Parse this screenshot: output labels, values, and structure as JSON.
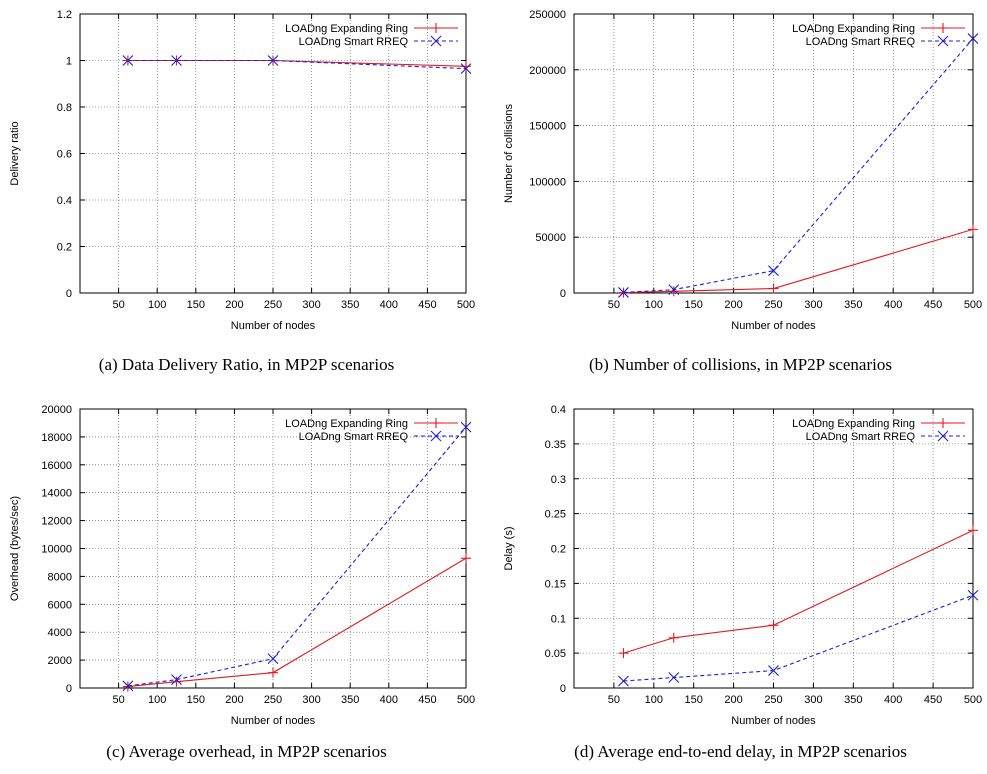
{
  "colors": {
    "series1": "#e31a1c",
    "series2": "#1f1fd0",
    "grid": "#555555"
  },
  "chart_data": [
    {
      "type": "line",
      "caption": "(a)  Data Delivery Ratio, in MP2P scenarios",
      "xlabel": "Number of nodes",
      "ylabel": "Delivery ratio",
      "xlim": [
        0,
        500
      ],
      "ylim": [
        0,
        1.2
      ],
      "xticks": [
        50,
        100,
        150,
        200,
        250,
        300,
        350,
        400,
        450,
        500
      ],
      "yticks": [
        0,
        0.2,
        0.4,
        0.6,
        0.8,
        1,
        1.2
      ],
      "ytick_labels": [
        "0",
        "0.2",
        "0.4",
        "0.6",
        "0.8",
        "1",
        "1.2"
      ],
      "grid": true,
      "legend": "top-right",
      "series": [
        {
          "name": "LOADng Expanding Ring",
          "marker": "plus",
          "dashed": false,
          "x": [
            62,
            125,
            250,
            500
          ],
          "y": [
            1.0,
            1.0,
            1.0,
            0.975
          ]
        },
        {
          "name": "LOADng Smart RREQ",
          "marker": "x",
          "dashed": true,
          "x": [
            62,
            125,
            250,
            500
          ],
          "y": [
            1.0,
            1.0,
            1.0,
            0.965
          ]
        }
      ]
    },
    {
      "type": "line",
      "caption": "(b)  Number of collisions, in MP2P scenarios",
      "xlabel": "Number of nodes",
      "ylabel": "Number of collisions",
      "xlim": [
        0,
        500
      ],
      "ylim": [
        0,
        250000
      ],
      "xticks": [
        50,
        100,
        150,
        200,
        250,
        300,
        350,
        400,
        450,
        500
      ],
      "yticks": [
        0,
        50000,
        100000,
        150000,
        200000,
        250000
      ],
      "ytick_labels": [
        "0",
        "50000",
        "100000",
        "150000",
        "200000",
        "250000"
      ],
      "grid": true,
      "legend": "top-right",
      "series": [
        {
          "name": "LOADng Expanding Ring",
          "marker": "plus",
          "dashed": false,
          "x": [
            62,
            125,
            250,
            500
          ],
          "y": [
            300,
            1500,
            4000,
            57000
          ]
        },
        {
          "name": "LOADng Smart RREQ",
          "marker": "x",
          "dashed": true,
          "x": [
            62,
            125,
            250,
            500
          ],
          "y": [
            500,
            3000,
            20000,
            228000
          ]
        }
      ]
    },
    {
      "type": "line",
      "caption": "(c)  Average overhead, in MP2P scenarios",
      "xlabel": "Number of nodes",
      "ylabel": "Overhead (bytes/sec)",
      "xlim": [
        0,
        500
      ],
      "ylim": [
        0,
        20000
      ],
      "xticks": [
        50,
        100,
        150,
        200,
        250,
        300,
        350,
        400,
        450,
        500
      ],
      "yticks": [
        0,
        2000,
        4000,
        6000,
        8000,
        10000,
        12000,
        14000,
        16000,
        18000,
        20000
      ],
      "ytick_labels": [
        "0",
        "2000",
        "4000",
        "6000",
        "8000",
        "10000",
        "12000",
        "14000",
        "16000",
        "18000",
        "20000"
      ],
      "grid": true,
      "legend": "top-right",
      "series": [
        {
          "name": "LOADng Expanding Ring",
          "marker": "plus",
          "dashed": false,
          "x": [
            62,
            125,
            250,
            500
          ],
          "y": [
            100,
            450,
            1100,
            9300
          ]
        },
        {
          "name": "LOADng Smart RREQ",
          "marker": "x",
          "dashed": true,
          "x": [
            62,
            125,
            250,
            500
          ],
          "y": [
            150,
            600,
            2100,
            18700
          ]
        }
      ]
    },
    {
      "type": "line",
      "caption": "(d)  Average end-to-end delay, in MP2P scenarios",
      "xlabel": "Number of nodes",
      "ylabel": "Delay (s)",
      "xlim": [
        0,
        500
      ],
      "ylim": [
        0,
        0.4
      ],
      "xticks": [
        50,
        100,
        150,
        200,
        250,
        300,
        350,
        400,
        450,
        500
      ],
      "yticks": [
        0,
        0.05,
        0.1,
        0.15,
        0.2,
        0.25,
        0.3,
        0.35,
        0.4
      ],
      "ytick_labels": [
        "0",
        "0.05",
        "0.1",
        "0.15",
        "0.2",
        "0.25",
        "0.3",
        "0.35",
        "0.4"
      ],
      "grid": true,
      "legend": "top-right",
      "series": [
        {
          "name": "LOADng Expanding Ring",
          "marker": "plus",
          "dashed": false,
          "x": [
            62,
            125,
            250,
            500
          ],
          "y": [
            0.05,
            0.072,
            0.09,
            0.226
          ]
        },
        {
          "name": "LOADng Smart RREQ",
          "marker": "x",
          "dashed": true,
          "x": [
            62,
            125,
            250,
            500
          ],
          "y": [
            0.01,
            0.015,
            0.025,
            0.133
          ]
        }
      ]
    }
  ]
}
